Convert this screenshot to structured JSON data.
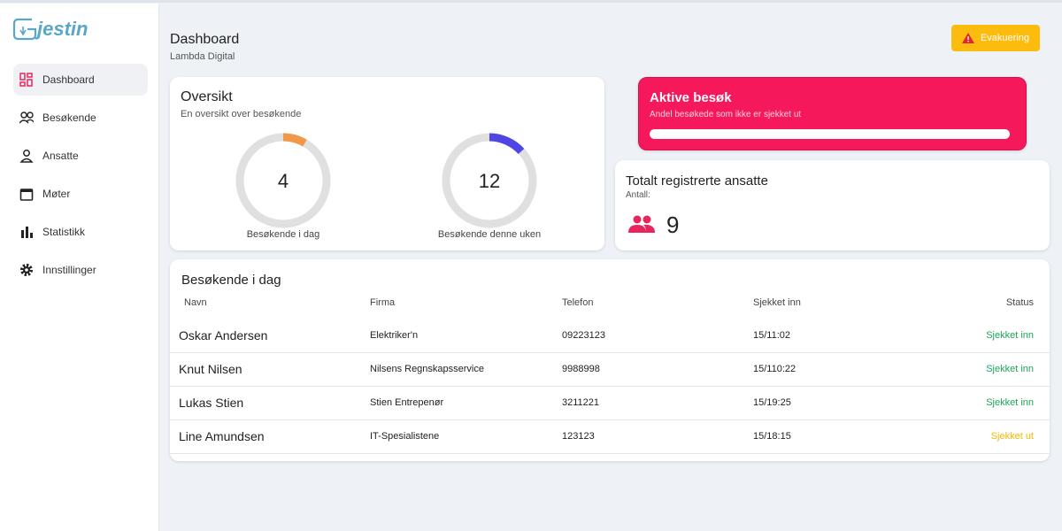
{
  "logo": "jestin",
  "nav": [
    "Dashboard",
    "Besøkende",
    "Ansatte",
    "Møter",
    "Statistikk",
    "Innstillinger"
  ],
  "header": {
    "title": "Dashboard",
    "subtitle": "Lambda Digital"
  },
  "button": "Evakuering",
  "overview": {
    "title": "Oversikt",
    "subtitle": "En oversikt over besøkende",
    "stats": [
      {
        "value": 4,
        "label": "Besøkende i dag"
      },
      {
        "value": 12,
        "label": "Besøkende denne uken"
      }
    ]
  },
  "active": {
    "title": "Aktive besøk",
    "subtitle": "Andel besøkede som ikke er sjekket ut"
  },
  "employees": {
    "title": "Totalt registrerte ansatte",
    "label": "Antall:",
    "value": 9
  },
  "table": {
    "title": "Besøkende i dag",
    "columns": [
      "Navn",
      "Firma",
      "Telefon",
      "Sjekket inn",
      "Status"
    ],
    "rows": [
      {
        "cells": [
          "Oskar Andersen",
          "Elektriker'n",
          "09223123",
          "15/11:02",
          "Sjekket inn"
        ],
        "status_color": "#1fa35a"
      },
      {
        "cells": [
          "Knut Nilsen",
          "Nilsens Regnskapsservice",
          "9988998",
          "15/110:22",
          "Sjekket inn"
        ],
        "status_color": "#1fa35a"
      },
      {
        "cells": [
          "Lukas Stien",
          "Stien Entrepenør",
          "3211221",
          "15/19:25",
          "Sjekket inn"
        ],
        "status_color": "#1fa35a"
      },
      {
        "cells": [
          "Line Amundsen",
          "IT-Spesialistene",
          "123123",
          "15/18:15",
          "Sjekket ut"
        ],
        "status_color": "#f2b705"
      }
    ]
  }
}
